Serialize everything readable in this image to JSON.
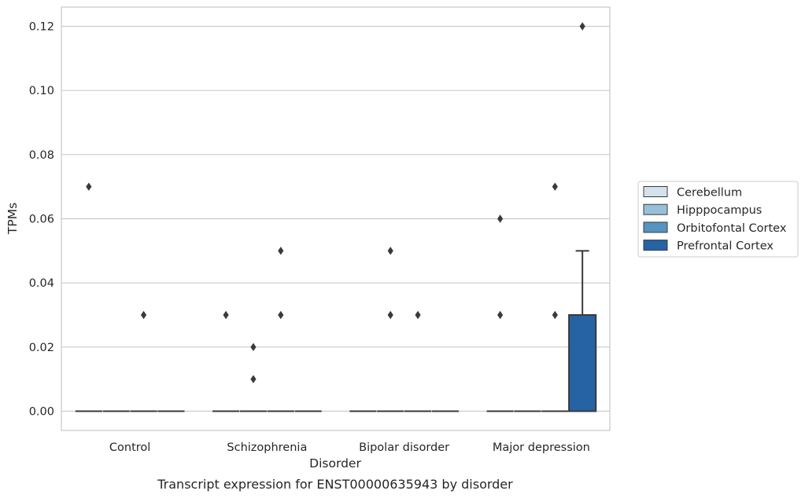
{
  "chart_data": {
    "type": "box",
    "title": "",
    "caption": "Transcript expression for ENST00000635943 by disorder",
    "xlabel": "Disorder",
    "ylabel": "TPMs",
    "ylim": [
      -0.006,
      0.126
    ],
    "yticks": [
      0.0,
      0.02,
      0.04,
      0.06,
      0.08,
      0.1,
      0.12
    ],
    "ytick_labels": [
      "0.00",
      "0.02",
      "0.04",
      "0.06",
      "0.08",
      "0.10",
      "0.12"
    ],
    "grid": "horizontal",
    "legend_position": "right",
    "categories": [
      "Control",
      "Schizophrenia",
      "Bipolar disorder",
      "Major depression"
    ],
    "series": [
      {
        "name": "Cerebellum",
        "color": "#d4e2ee",
        "boxes": [
          {
            "q1": 0,
            "median": 0,
            "q3": 0,
            "whisker_low": 0,
            "whisker_high": 0,
            "outliers": [
              0.07
            ]
          },
          {
            "q1": 0,
            "median": 0,
            "q3": 0,
            "whisker_low": 0,
            "whisker_high": 0,
            "outliers": [
              0.03
            ]
          },
          {
            "q1": 0,
            "median": 0,
            "q3": 0,
            "whisker_low": 0,
            "whisker_high": 0,
            "outliers": []
          },
          {
            "q1": 0,
            "median": 0,
            "q3": 0,
            "whisker_low": 0,
            "whisker_high": 0,
            "outliers": [
              0.03,
              0.06
            ]
          }
        ]
      },
      {
        "name": "Hipppocampus",
        "color": "#98bfd9",
        "boxes": [
          {
            "q1": 0,
            "median": 0,
            "q3": 0,
            "whisker_low": 0,
            "whisker_high": 0,
            "outliers": []
          },
          {
            "q1": 0,
            "median": 0,
            "q3": 0,
            "whisker_low": 0,
            "whisker_high": 0,
            "outliers": [
              0.02,
              0.01
            ]
          },
          {
            "q1": 0,
            "median": 0,
            "q3": 0,
            "whisker_low": 0,
            "whisker_high": 0,
            "outliers": [
              0.05,
              0.03
            ]
          },
          {
            "q1": 0,
            "median": 0,
            "q3": 0,
            "whisker_low": 0,
            "whisker_high": 0,
            "outliers": []
          }
        ]
      },
      {
        "name": "Orbitofontal Cortex",
        "color": "#5593c2",
        "boxes": [
          {
            "q1": 0,
            "median": 0,
            "q3": 0,
            "whisker_low": 0,
            "whisker_high": 0,
            "outliers": [
              0.03
            ]
          },
          {
            "q1": 0,
            "median": 0,
            "q3": 0,
            "whisker_low": 0,
            "whisker_high": 0,
            "outliers": [
              0.05,
              0.03
            ]
          },
          {
            "q1": 0,
            "median": 0,
            "q3": 0,
            "whisker_low": 0,
            "whisker_high": 0,
            "outliers": [
              0.03
            ]
          },
          {
            "q1": 0,
            "median": 0,
            "q3": 0,
            "whisker_low": 0,
            "whisker_high": 0,
            "outliers": [
              0.07,
              0.03
            ]
          }
        ]
      },
      {
        "name": "Prefrontal Cortex",
        "color": "#2563a5",
        "boxes": [
          {
            "q1": 0,
            "median": 0,
            "q3": 0,
            "whisker_low": 0,
            "whisker_high": 0,
            "outliers": []
          },
          {
            "q1": 0,
            "median": 0,
            "q3": 0,
            "whisker_low": 0,
            "whisker_high": 0,
            "outliers": []
          },
          {
            "q1": 0,
            "median": 0,
            "q3": 0,
            "whisker_low": 0,
            "whisker_high": 0,
            "outliers": []
          },
          {
            "q1": 0,
            "median": 0,
            "q3": 0.03,
            "whisker_low": 0,
            "whisker_high": 0.05,
            "outliers": [
              0.12
            ]
          }
        ]
      }
    ]
  }
}
